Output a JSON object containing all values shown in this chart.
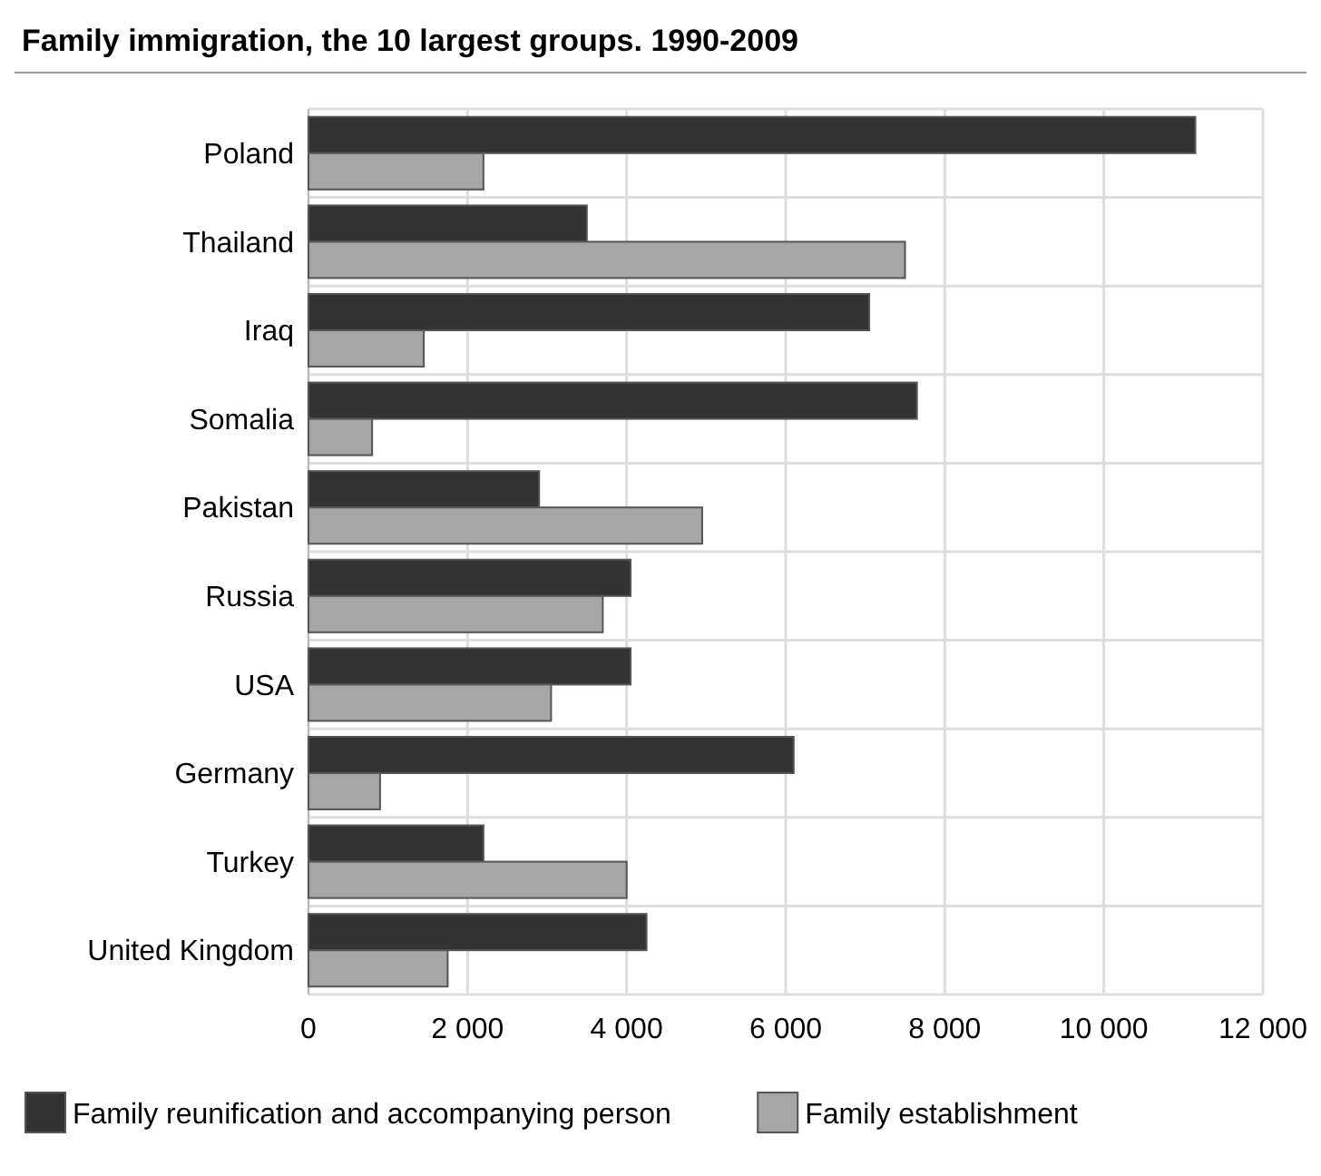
{
  "chart_data": {
    "type": "bar",
    "orientation": "horizontal",
    "title": "Family immigration, the 10 largest groups. 1990-2009",
    "categories": [
      "Poland",
      "Thailand",
      "Iraq",
      "Somalia",
      "Pakistan",
      "Russia",
      "USA",
      "Germany",
      "Turkey",
      "United Kingdom"
    ],
    "series": [
      {
        "name": "Family reunification and accompanying person",
        "color": "#333333",
        "values": [
          11150,
          3500,
          7050,
          7650,
          2900,
          4050,
          4050,
          6100,
          2200,
          4250
        ]
      },
      {
        "name": "Family establishment",
        "color": "#a6a6a6",
        "values": [
          2200,
          7500,
          1450,
          800,
          4950,
          3700,
          3050,
          900,
          4000,
          1750
        ]
      }
    ],
    "xlim": [
      0,
      12000
    ],
    "xticks": [
      {
        "value": 0,
        "label": "0"
      },
      {
        "value": 2000,
        "label": "2 000"
      },
      {
        "value": 4000,
        "label": "4 000"
      },
      {
        "value": 6000,
        "label": "6 000"
      },
      {
        "value": 8000,
        "label": "8 000"
      },
      {
        "value": 10000,
        "label": "10 000"
      },
      {
        "value": 12000,
        "label": "12 000"
      }
    ],
    "grid": true,
    "legend": "bottom"
  }
}
